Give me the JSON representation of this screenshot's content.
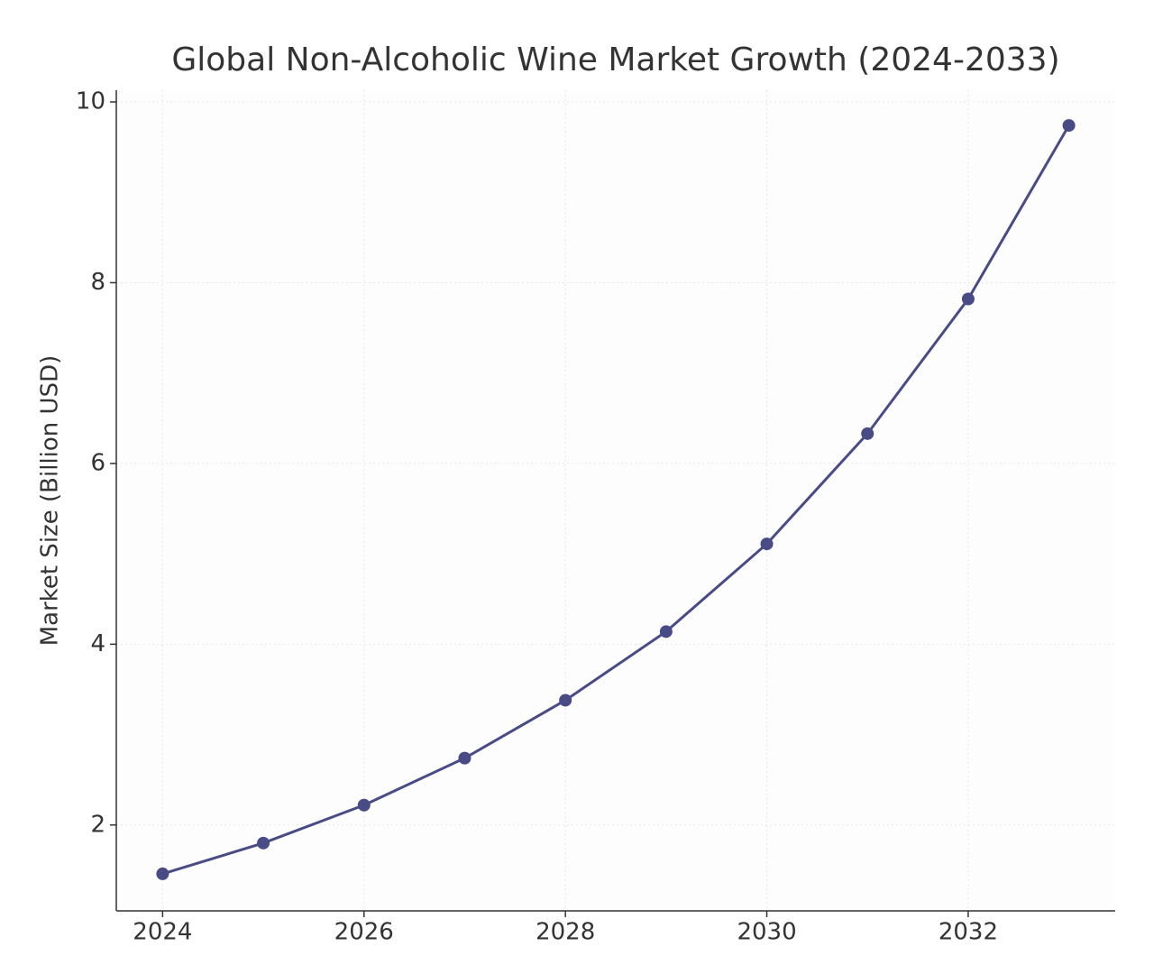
{
  "chart_data": {
    "type": "line",
    "title": "Global Non-Alcoholic Wine Market Growth (2024-2033)",
    "ylabel": "Market Size (Billion USD)",
    "x": [
      2024,
      2025,
      2026,
      2027,
      2028,
      2029,
      2030,
      2031,
      2032,
      2033
    ],
    "series": [
      {
        "name": "Market Size",
        "color": "#484b85",
        "values": [
          1.46,
          1.8,
          2.22,
          2.74,
          3.38,
          4.14,
          5.11,
          6.33,
          7.82,
          9.74
        ]
      }
    ],
    "xlim": [
      2023.54,
      2033.46
    ],
    "xticks": [
      2024,
      2026,
      2028,
      2030,
      2032
    ],
    "ylim": [
      1.05,
      10.13
    ],
    "yticks": [
      2,
      4,
      6,
      8,
      10
    ],
    "grid": true
  }
}
